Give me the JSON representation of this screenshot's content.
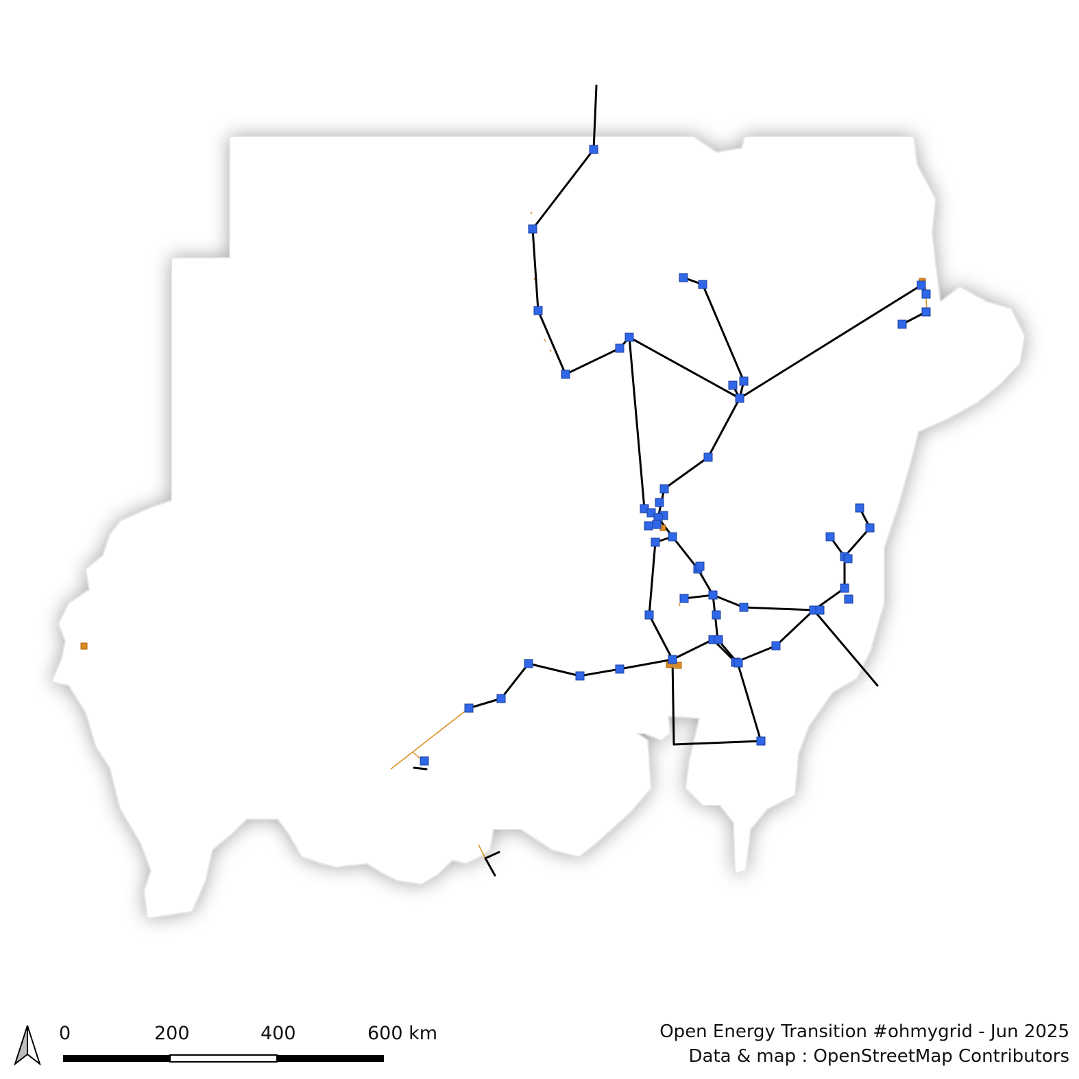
{
  "map": {
    "country": "Sudan",
    "colors": {
      "land": "#ffffff",
      "hv_line": "#000000",
      "mv_line": "#d98c1f",
      "substation": "#2f67e8",
      "other_substation": "#dd8a22"
    }
  },
  "scale_bar": {
    "tick_labels": [
      "0",
      "200",
      "400",
      "600 km"
    ],
    "segments": 3,
    "colors": [
      "#000000",
      "#ffffff",
      "#000000"
    ]
  },
  "credits": {
    "line1": "Open Energy Transition #ohmygrid - Jun 2025",
    "line2": "Data & map : OpenStreetMap Contributors"
  },
  "north_arrow": {
    "icon": "north-arrow-icon"
  }
}
